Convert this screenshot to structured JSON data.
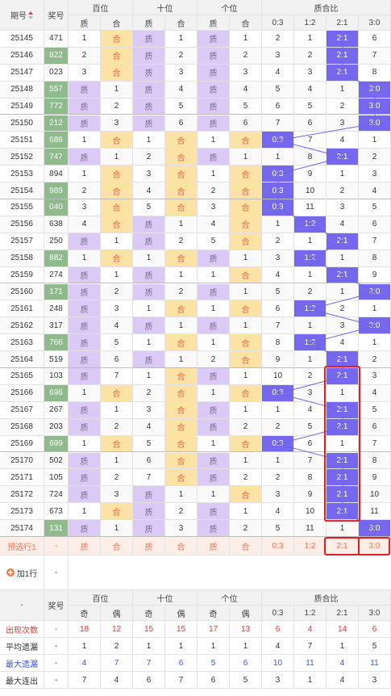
{
  "header": {
    "period": "期号",
    "number": "奖号",
    "groups": [
      "百位",
      "十位",
      "个位",
      "质合比"
    ],
    "sub": [
      "质",
      "合",
      "质",
      "合",
      "质",
      "合",
      "0:3",
      "1:2",
      "2:1",
      "3:0"
    ]
  },
  "rows": [
    [
      "25145",
      "471",
      1,
      "合",
      "质",
      1,
      "质",
      1,
      2,
      1,
      "2:1",
      6
    ],
    [
      "25146",
      "822",
      2,
      "合",
      "质",
      2,
      "质",
      2,
      3,
      2,
      "2:1",
      7
    ],
    [
      "25147",
      "023",
      3,
      "合",
      "质",
      3,
      "质",
      3,
      4,
      3,
      "2:1",
      8
    ],
    [
      "25148",
      "557",
      "质",
      1,
      "质",
      4,
      "质",
      4,
      5,
      4,
      1,
      "3:0"
    ],
    [
      "25149",
      "772",
      "质",
      2,
      "质",
      5,
      "质",
      5,
      6,
      5,
      2,
      "3:0"
    ],
    [
      "25150",
      "212",
      "质",
      3,
      "质",
      6,
      "质",
      6,
      7,
      6,
      3,
      "3:0"
    ],
    [
      "25151",
      "686",
      1,
      "合",
      1,
      "合",
      1,
      "合",
      "0:3",
      7,
      4,
      1
    ],
    [
      "25152",
      "747",
      "质",
      1,
      2,
      "合",
      "质",
      1,
      1,
      8,
      "2:1",
      2
    ],
    [
      "25153",
      "894",
      1,
      "合",
      3,
      "合",
      1,
      "合",
      "0:3",
      9,
      1,
      3
    ],
    [
      "25154",
      "989",
      2,
      "合",
      4,
      "合",
      2,
      "合",
      "0:3",
      10,
      2,
      4
    ],
    [
      "25155",
      "040",
      3,
      "合",
      5,
      "合",
      3,
      "合",
      "0:3",
      11,
      3,
      5
    ],
    [
      "25156",
      "638",
      4,
      "合",
      "质",
      1,
      4,
      "合",
      1,
      "1:2",
      4,
      6
    ],
    [
      "25157",
      "250",
      "质",
      1,
      "质",
      2,
      5,
      "合",
      2,
      1,
      "2:1",
      7
    ],
    [
      "25158",
      "882",
      1,
      "合",
      1,
      "合",
      "质",
      1,
      3,
      "1:2",
      1,
      8
    ],
    [
      "25159",
      "274",
      "质",
      1,
      "质",
      1,
      1,
      "合",
      4,
      1,
      "2:1",
      9
    ],
    [
      "25160",
      "171",
      "质",
      2,
      "质",
      2,
      "质",
      1,
      5,
      2,
      1,
      "3:0"
    ],
    [
      "25161",
      "248",
      "质",
      3,
      1,
      "合",
      1,
      "合",
      6,
      "1:2",
      2,
      1
    ],
    [
      "25162",
      "317",
      "质",
      4,
      "质",
      1,
      "质",
      1,
      7,
      1,
      3,
      "3:0"
    ],
    [
      "25163",
      "766",
      "质",
      5,
      1,
      "合",
      1,
      "合",
      8,
      "1:2",
      4,
      1
    ],
    [
      "25164",
      "519",
      "质",
      6,
      "质",
      1,
      2,
      "合",
      9,
      1,
      "2:1",
      2
    ],
    [
      "25165",
      "103",
      "质",
      7,
      1,
      "合",
      "质",
      1,
      10,
      2,
      "2:1",
      3
    ],
    [
      "25166",
      "696",
      1,
      "合",
      2,
      "合",
      1,
      "合",
      "0:3",
      3,
      1,
      4
    ],
    [
      "25167",
      "267",
      "质",
      1,
      3,
      "合",
      "质",
      1,
      1,
      4,
      "2:1",
      5
    ],
    [
      "25168",
      "203",
      "质",
      2,
      4,
      "合",
      "质",
      2,
      2,
      5,
      "2:1",
      6
    ],
    [
      "25169",
      "699",
      1,
      "合",
      5,
      "合",
      1,
      "合",
      "0:3",
      6,
      1,
      7
    ],
    [
      "25170",
      "502",
      "质",
      1,
      6,
      "合",
      "质",
      1,
      1,
      7,
      "2:1",
      8
    ],
    [
      "25171",
      "105",
      "质",
      2,
      7,
      "合",
      "质",
      2,
      2,
      8,
      "2:1",
      9
    ],
    [
      "25172",
      "724",
      "质",
      3,
      "质",
      1,
      1,
      "合",
      3,
      9,
      "2:1",
      10
    ],
    [
      "25173",
      "673",
      1,
      "合",
      "质",
      2,
      "质",
      1,
      4,
      10,
      "2:1",
      11
    ],
    [
      "25174",
      "131",
      "质",
      1,
      "质",
      3,
      "质",
      2,
      5,
      11,
      1,
      "3:0"
    ]
  ],
  "preselect": [
    "预选行1",
    "-",
    "质",
    "合",
    "质",
    "合",
    "质",
    "合",
    "0:3",
    "1:2",
    "2:1",
    "3:0"
  ],
  "add_row": [
    "加1行",
    "-"
  ],
  "stats_header": {
    "label": "-",
    "number": "奖号",
    "groups": [
      "百位",
      "十位",
      "个位",
      "质合比"
    ],
    "sub": [
      "奇",
      "偶",
      "奇",
      "偶",
      "奇",
      "偶",
      "0:3",
      "1:2",
      "2:1",
      "3:0"
    ]
  },
  "stats": [
    [
      "出现次数",
      "-",
      18,
      12,
      15,
      15,
      17,
      13,
      6,
      4,
      14,
      6
    ],
    [
      "平均遗漏",
      "-",
      1,
      2,
      1,
      1,
      1,
      1,
      4,
      7,
      1,
      5
    ],
    [
      "最大遗漏",
      "-",
      4,
      7,
      7,
      6,
      5,
      6,
      10,
      11,
      4,
      11
    ],
    [
      "最大连出",
      "-",
      7,
      4,
      6,
      7,
      6,
      5,
      3,
      1,
      4,
      3
    ]
  ]
}
